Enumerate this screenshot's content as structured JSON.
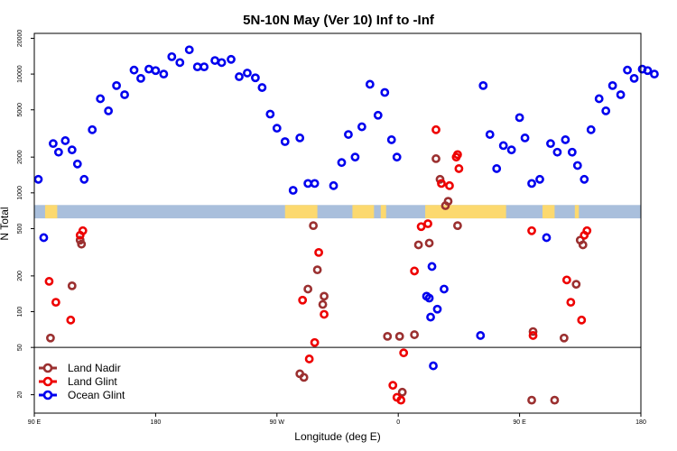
{
  "chart_data": {
    "type": "scatter",
    "title": "5N-10N May (Ver 10)   Inf to -Inf",
    "xlabel": "Longitude (deg E)",
    "ylabel": "N Total",
    "y_scale": "log",
    "ylim": [
      14,
      22000
    ],
    "grid": false,
    "legend_position": "bottom-left",
    "x_ticks": [
      {
        "pos": 90,
        "label": "90 E"
      },
      {
        "pos": 180,
        "label": "180"
      },
      {
        "pos": 270,
        "label": "90 W"
      },
      {
        "pos": 360,
        "label": "0"
      },
      {
        "pos": 450,
        "label": "90 E"
      },
      {
        "pos": 540,
        "label": "180"
      }
    ],
    "y_ticks": [
      {
        "value": 20,
        "label": "20"
      },
      {
        "value": 50,
        "label": "50"
      },
      {
        "value": 100,
        "label": "100"
      },
      {
        "value": 200,
        "label": "200"
      },
      {
        "value": 500,
        "label": "500"
      },
      {
        "value": 1000,
        "label": "1000"
      },
      {
        "value": 2000,
        "label": "2000"
      },
      {
        "value": 5000,
        "label": "5000"
      },
      {
        "value": 10000,
        "label": "10000"
      },
      {
        "value": 20000,
        "label": "20000"
      }
    ],
    "reference_line_y": 50,
    "land_strip": {
      "y_range": [
        610,
        790
      ],
      "ocean_color": "#a9bfdc",
      "land_color": "#fcd96f",
      "land_segments": [
        [
          98,
          107
        ],
        [
          276,
          300
        ],
        [
          326,
          342
        ],
        [
          347,
          351
        ],
        [
          380,
          440
        ],
        [
          467,
          476
        ],
        [
          491,
          494
        ]
      ]
    },
    "series": [
      {
        "name": "Land Nadir",
        "color": "#9b3030",
        "points": [
          [
            102,
            60
          ],
          [
            118,
            165
          ],
          [
            124,
            400
          ],
          [
            125,
            370
          ],
          [
            287,
            30
          ],
          [
            290,
            28
          ],
          [
            293,
            155
          ],
          [
            297,
            530
          ],
          [
            300,
            225
          ],
          [
            304,
            115
          ],
          [
            305,
            135
          ],
          [
            352,
            62
          ],
          [
            361,
            62
          ],
          [
            363,
            21
          ],
          [
            372,
            64
          ],
          [
            375,
            365
          ],
          [
            383,
            378
          ],
          [
            388,
            1940
          ],
          [
            391,
            1300
          ],
          [
            395,
            780
          ],
          [
            397,
            850
          ],
          [
            404,
            530
          ],
          [
            459,
            18
          ],
          [
            460,
            68
          ],
          [
            476,
            18
          ],
          [
            483,
            60
          ],
          [
            492,
            170
          ],
          [
            495,
            400
          ],
          [
            497,
            365
          ]
        ]
      },
      {
        "name": "Land Glint",
        "color": "#ee0000",
        "points": [
          [
            101,
            180
          ],
          [
            106,
            120
          ],
          [
            117,
            85
          ],
          [
            124,
            440
          ],
          [
            126,
            480
          ],
          [
            289,
            125
          ],
          [
            294,
            40
          ],
          [
            298,
            55
          ],
          [
            301,
            315
          ],
          [
            305,
            95
          ],
          [
            356,
            24
          ],
          [
            359,
            19
          ],
          [
            362,
            18
          ],
          [
            364,
            45
          ],
          [
            372,
            220
          ],
          [
            377,
            520
          ],
          [
            382,
            550
          ],
          [
            388,
            3400
          ],
          [
            392,
            1200
          ],
          [
            398,
            1150
          ],
          [
            403,
            2000
          ],
          [
            404,
            2100
          ],
          [
            405,
            1600
          ],
          [
            459,
            480
          ],
          [
            460,
            63
          ],
          [
            485,
            185
          ],
          [
            488,
            120
          ],
          [
            496,
            85
          ],
          [
            498,
            440
          ],
          [
            500,
            480
          ]
        ]
      },
      {
        "name": "Ocean Glint",
        "color": "#0000ee",
        "points": [
          [
            93,
            1300
          ],
          [
            97,
            420
          ],
          [
            104,
            2600
          ],
          [
            108,
            2200
          ],
          [
            113,
            2750
          ],
          [
            118,
            2300
          ],
          [
            122,
            1750
          ],
          [
            127,
            1300
          ],
          [
            133,
            3400
          ],
          [
            139,
            6200
          ],
          [
            145,
            4900
          ],
          [
            151,
            8000
          ],
          [
            157,
            6700
          ],
          [
            164,
            10800
          ],
          [
            169,
            9200
          ],
          [
            175,
            11000
          ],
          [
            180,
            10700
          ],
          [
            186,
            10000
          ],
          [
            192,
            14000
          ],
          [
            198,
            12500
          ],
          [
            205,
            16000
          ],
          [
            211,
            11500
          ],
          [
            216,
            11500
          ],
          [
            224,
            13000
          ],
          [
            229,
            12500
          ],
          [
            236,
            13300
          ],
          [
            242,
            9500
          ],
          [
            248,
            10200
          ],
          [
            254,
            9300
          ],
          [
            259,
            7700
          ],
          [
            265,
            4600
          ],
          [
            270,
            3500
          ],
          [
            276,
            2700
          ],
          [
            282,
            1050
          ],
          [
            287,
            2900
          ],
          [
            293,
            1200
          ],
          [
            298,
            1200
          ],
          [
            312,
            1150
          ],
          [
            318,
            1800
          ],
          [
            323,
            3100
          ],
          [
            328,
            2000
          ],
          [
            333,
            3600
          ],
          [
            339,
            8200
          ],
          [
            345,
            4500
          ],
          [
            350,
            7000
          ],
          [
            355,
            2800
          ],
          [
            359,
            2000
          ],
          [
            381,
            135
          ],
          [
            383,
            130
          ],
          [
            384,
            90
          ],
          [
            385,
            240
          ],
          [
            386,
            35
          ],
          [
            389,
            105
          ],
          [
            394,
            155
          ],
          [
            421,
            63
          ],
          [
            423,
            8000
          ],
          [
            428,
            3100
          ],
          [
            433,
            1600
          ],
          [
            438,
            2500
          ],
          [
            444,
            2300
          ],
          [
            450,
            4300
          ],
          [
            454,
            2900
          ],
          [
            459,
            1200
          ],
          [
            465,
            1300
          ],
          [
            470,
            420
          ],
          [
            473,
            2600
          ],
          [
            478,
            2200
          ],
          [
            484,
            2800
          ],
          [
            489,
            2200
          ],
          [
            493,
            1700
          ],
          [
            498,
            1300
          ],
          [
            503,
            3400
          ],
          [
            509,
            6200
          ],
          [
            514,
            4900
          ],
          [
            519,
            8000
          ],
          [
            525,
            6700
          ],
          [
            530,
            10800
          ],
          [
            535,
            9200
          ],
          [
            541,
            11000
          ],
          [
            545,
            10700
          ],
          [
            550,
            10000
          ]
        ]
      }
    ]
  }
}
